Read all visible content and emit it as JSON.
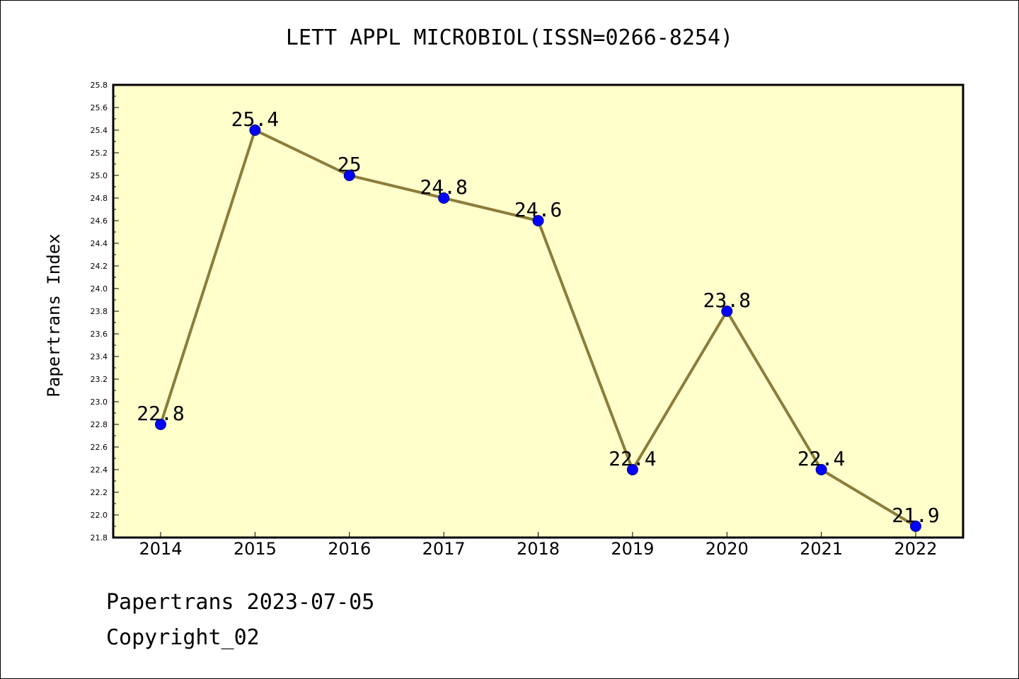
{
  "chart_data": {
    "type": "line",
    "title": "LETT APPL MICROBIOL(ISSN=0266-8254)",
    "ylabel": "Papertrans Index",
    "xlabel": "",
    "categories": [
      "2014",
      "2015",
      "2016",
      "2017",
      "2018",
      "2019",
      "2020",
      "2021",
      "2022"
    ],
    "series": [
      {
        "values": [
          22.8,
          25.4,
          25.0,
          24.8,
          24.6,
          22.4,
          23.8,
          22.4,
          21.9
        ],
        "data_labels": [
          "22.8",
          "25.4",
          "25",
          "24.8",
          "24.6",
          "22.4",
          "23.8",
          "22.4",
          "21.9"
        ]
      }
    ],
    "ylim": [
      21.8,
      25.8
    ],
    "y_ticks": [
      "21.8",
      "22.0",
      "22.2",
      "22.4",
      "22.6",
      "22.8",
      "23.0",
      "23.2",
      "23.4",
      "23.6",
      "23.8",
      "24.0",
      "24.2",
      "24.4",
      "24.6",
      "24.8",
      "25.0",
      "25.2",
      "25.4",
      "25.6",
      "25.8"
    ],
    "grid": false,
    "colors": {
      "plot_background": "#ffffcc",
      "line": "#8b7d3a",
      "marker_fill": "#0000ff",
      "marker_stroke": "#000080"
    }
  },
  "footer": {
    "line1": "Papertrans 2023-07-05",
    "line2": "Copyright_02"
  }
}
